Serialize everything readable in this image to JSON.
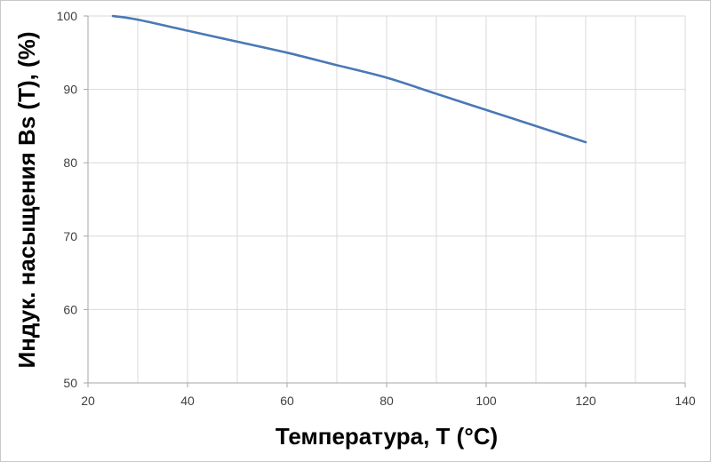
{
  "chart_data": {
    "type": "line",
    "title": "",
    "xlabel": "Температура, T (°C)",
    "ylabel": "Индук. насыщения Bs (T), (%)",
    "xlim": [
      20,
      140
    ],
    "ylim": [
      50,
      100
    ],
    "x_ticks": [
      20,
      40,
      60,
      80,
      100,
      120,
      140
    ],
    "y_ticks": [
      50,
      60,
      70,
      80,
      90,
      100
    ],
    "x_minor_step": 10,
    "grid": true,
    "legend": "none",
    "line_color": "#4a78b5",
    "grid_color": "#d9d9d9",
    "axis_color": "#a6a6a6",
    "series": [
      {
        "x": [
          25,
          30,
          40,
          50,
          60,
          70,
          80,
          90,
          100,
          110,
          120
        ],
        "values": [
          100,
          99.5,
          98,
          96.5,
          95,
          93.3,
          91.6,
          89.4,
          87.2,
          85,
          82.8
        ]
      }
    ]
  }
}
